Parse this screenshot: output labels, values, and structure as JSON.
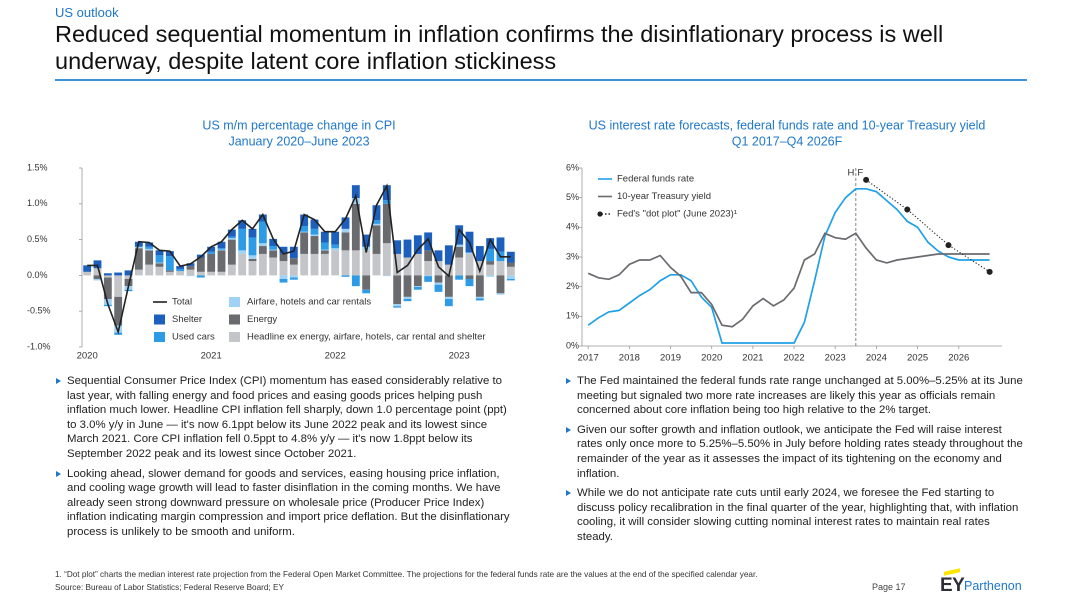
{
  "header": {
    "section": "US outlook",
    "title": "Reduced sequential momentum in inflation confirms the disinflationary process is well underway, despite latent core inflation stickiness"
  },
  "chart_data": [
    {
      "type": "bar",
      "stacked": true,
      "title": "US m/m percentage change in CPI",
      "subtitle": "January 2020–June 2023",
      "categories": [
        "2020",
        null,
        null,
        null,
        null,
        null,
        null,
        null,
        null,
        null,
        null,
        null,
        "2021",
        null,
        null,
        null,
        null,
        null,
        null,
        null,
        null,
        null,
        null,
        null,
        "2022",
        null,
        null,
        null,
        null,
        null,
        null,
        null,
        null,
        null,
        null,
        null,
        "2023",
        null,
        null,
        null,
        null,
        null
      ],
      "ylim": [
        -1.0,
        1.5
      ],
      "yticks": [
        {
          "value": 1.5,
          "label": "1.5%"
        },
        {
          "value": 1.0,
          "label": "1.0%"
        },
        {
          "value": 0.5,
          "label": "0.5%"
        },
        {
          "value": 0.0,
          "label": "0.0%"
        },
        {
          "value": -0.5,
          "label": "-0.5%"
        },
        {
          "value": -1.0,
          "label": "-1.0%"
        }
      ],
      "grid": false,
      "legend": "lower-center",
      "series": [
        {
          "name": "Total",
          "type": "line",
          "color": "#222222",
          "values": [
            0.14,
            0.14,
            -0.4,
            -0.79,
            -0.15,
            0.47,
            0.46,
            0.35,
            0.34,
            0.13,
            0.16,
            0.26,
            0.4,
            0.47,
            0.64,
            0.77,
            0.65,
            0.85,
            0.51,
            0.3,
            0.34,
            0.85,
            0.78,
            0.61,
            0.61,
            0.79,
            1.11,
            0.32,
            0.98,
            1.25,
            0.04,
            0.14,
            0.36,
            0.51,
            0.12,
            -0.01,
            0.64,
            0.46,
            0.06,
            0.5,
            0.26,
            0.26
          ]
        },
        {
          "name": "Shelter",
          "color": "#1c5fbd",
          "values": [
            0.09,
            0.11,
            0.03,
            0.04,
            0.07,
            0.07,
            0.06,
            0.07,
            0.07,
            0.04,
            0.04,
            0.04,
            0.07,
            0.09,
            0.1,
            0.12,
            0.12,
            0.1,
            0.1,
            0.1,
            0.16,
            0.16,
            0.13,
            0.15,
            0.18,
            0.16,
            0.18,
            0.17,
            0.21,
            0.21,
            0.19,
            0.25,
            0.26,
            0.25,
            0.15,
            0.27,
            0.27,
            0.29,
            0.21,
            0.15,
            0.2,
            0.15
          ]
        },
        {
          "name": "Used cars",
          "color": "#2e9be6",
          "values": [
            0.0,
            0.0,
            -0.02,
            -0.03,
            -0.02,
            0.0,
            0.03,
            0.1,
            0.2,
            0.03,
            0.0,
            -0.03,
            0.03,
            0.02,
            0.02,
            0.3,
            0.25,
            0.3,
            0.05,
            -0.05,
            -0.03,
            0.08,
            0.08,
            0.1,
            0.05,
            -0.02,
            -0.15,
            -0.05,
            0.05,
            0.05,
            -0.02,
            -0.03,
            -0.04,
            -0.08,
            -0.1,
            -0.1,
            -0.06,
            -0.1,
            -0.03,
            0.17,
            0.13,
            -0.02
          ]
        },
        {
          "name": "Airfare, hotels and car rentals",
          "color": "#9fd2f5",
          "values": [
            0.0,
            -0.02,
            -0.08,
            -0.1,
            -0.05,
            0.02,
            0.02,
            0.01,
            0.0,
            0.0,
            -0.01,
            0.0,
            0.0,
            0.01,
            0.02,
            0.05,
            0.05,
            0.04,
            0.01,
            -0.05,
            -0.03,
            0.01,
            0.02,
            0.01,
            0.03,
            0.05,
            0.08,
            0.05,
            0.02,
            -0.01,
            -0.03,
            -0.03,
            -0.01,
            -0.01,
            -0.03,
            -0.03,
            0.03,
            0.02,
            -0.02,
            -0.02,
            -0.02,
            -0.05
          ]
        },
        {
          "name": "Energy",
          "color": "#6a6b6f",
          "values": [
            0.0,
            -0.05,
            -0.3,
            -0.4,
            -0.1,
            0.3,
            0.2,
            0.05,
            0.02,
            0.0,
            0.05,
            0.2,
            0.25,
            0.3,
            0.35,
            0.0,
            0.03,
            0.11,
            0.1,
            0.1,
            0.09,
            0.3,
            0.25,
            0.05,
            0.0,
            0.25,
            0.65,
            -0.2,
            0.4,
            0.55,
            -0.4,
            -0.3,
            -0.15,
            0.15,
            -0.1,
            -0.3,
            0.15,
            -0.05,
            -0.3,
            0.05,
            -0.25,
            0.06
          ]
        },
        {
          "name": "Headline ex energy, airfare, hotels, car rental and shelter",
          "color": "#c4c5c8",
          "values": [
            0.05,
            0.1,
            -0.03,
            -0.3,
            -0.05,
            0.08,
            0.15,
            0.12,
            0.05,
            0.06,
            0.08,
            0.05,
            0.05,
            0.05,
            0.15,
            0.3,
            0.2,
            0.3,
            0.25,
            0.2,
            0.15,
            0.3,
            0.3,
            0.3,
            0.35,
            0.35,
            0.35,
            0.35,
            0.3,
            0.45,
            0.3,
            0.25,
            0.3,
            0.2,
            0.2,
            0.15,
            0.25,
            0.3,
            0.2,
            0.15,
            0.2,
            0.12
          ]
        }
      ]
    },
    {
      "type": "line",
      "title": "US interest rate forecasts, federal funds rate and 10-year Treasury yield",
      "subtitle": "Q1 2017–Q4 2026F",
      "x": [
        2017,
        2017.25,
        2017.5,
        2017.75,
        2018,
        2018.25,
        2018.5,
        2018.75,
        2019,
        2019.25,
        2019.5,
        2019.75,
        2020,
        2020.25,
        2020.5,
        2020.75,
        2021,
        2021.25,
        2021.5,
        2021.75,
        2022,
        2022.25,
        2022.5,
        2022.75,
        2023,
        2023.25,
        2023.5,
        2023.75,
        2024,
        2024.25,
        2024.5,
        2024.75,
        2025,
        2025.25,
        2025.5,
        2025.75,
        2026,
        2026.25,
        2026.5,
        2026.75
      ],
      "xlim": [
        2016.85,
        2027.05
      ],
      "xticks": [
        2017,
        2018,
        2019,
        2020,
        2021,
        2022,
        2023,
        2024,
        2025,
        2026
      ],
      "ylim": [
        0,
        6
      ],
      "yticks": [
        {
          "value": 0,
          "label": "0%"
        },
        {
          "value": 1,
          "label": "1%"
        },
        {
          "value": 2,
          "label": "2%"
        },
        {
          "value": 3,
          "label": "3%"
        },
        {
          "value": 4,
          "label": "4%"
        },
        {
          "value": 5,
          "label": "5%"
        },
        {
          "value": 6,
          "label": "6%"
        }
      ],
      "grid": false,
      "legend": "upper-left",
      "annotations": {
        "divider_x": 2023.5,
        "left": "H",
        "right": "F"
      },
      "series": [
        {
          "name": "Federal funds rate",
          "color": "#1fa0e8",
          "values": [
            0.7,
            0.95,
            1.15,
            1.2,
            1.45,
            1.7,
            1.9,
            2.2,
            2.4,
            2.4,
            2.2,
            1.65,
            1.3,
            0.1,
            0.1,
            0.1,
            0.1,
            0.1,
            0.1,
            0.1,
            0.1,
            0.8,
            2.2,
            3.7,
            4.5,
            5.0,
            5.3,
            5.3,
            5.2,
            4.9,
            4.6,
            4.2,
            4.0,
            3.5,
            3.2,
            3.0,
            2.9,
            2.9,
            2.9,
            2.9
          ]
        },
        {
          "name": "10-year Treasury yield",
          "color": "#6a6b6f",
          "values": [
            2.45,
            2.3,
            2.25,
            2.4,
            2.75,
            2.9,
            2.9,
            3.05,
            2.65,
            2.35,
            1.8,
            1.8,
            1.4,
            0.7,
            0.65,
            0.9,
            1.35,
            1.6,
            1.35,
            1.55,
            1.95,
            2.9,
            3.1,
            3.8,
            3.65,
            3.6,
            3.8,
            3.3,
            2.9,
            2.8,
            2.9,
            2.95,
            3.0,
            3.05,
            3.1,
            3.1,
            3.1,
            3.1,
            3.1,
            3.1
          ]
        },
        {
          "name": "Fed's \"dot plot\" (June 2023)¹",
          "color": "#222222",
          "style": "dotted",
          "x": [
            2023.75,
            2024.75,
            2025.75,
            2026.75
          ],
          "values": [
            5.6,
            4.6,
            3.4,
            2.5
          ]
        }
      ]
    }
  ],
  "text": {
    "left_bullets": [
      "Sequential Consumer Price Index (CPI) momentum has eased considerably relative to last year, with falling energy and food prices and easing goods prices helping push inflation much lower. Headline CPI inflation fell sharply, down 1.0 percentage point (ppt) to 3.0% y/y in June — it's now 6.1ppt below its June 2022 peak and its lowest since March 2021. Core CPI inflation fell 0.5ppt to 4.8% y/y — it's now 1.8ppt below its September 2022 peak and its lowest since October 2021.",
      "Looking ahead, slower demand for goods and services, easing housing price inflation, and cooling wage growth will lead to faster disinflation in the coming months. We have already seen strong downward pressure on wholesale price (Producer Price Index) inflation indicating margin compression and import price deflation. But the disinflationary process is unlikely to be smooth and uniform."
    ],
    "right_bullets": [
      "The Fed maintained the federal funds rate range unchanged at 5.00%–5.25% at its June meeting but signaled two more rate increases are likely this year as officials remain concerned about core inflation being too high relative to the 2% target.",
      "Given our softer growth and inflation outlook, we anticipate the Fed will raise interest rates only once more to 5.25%–5.50% in July before holding rates steady throughout the remainder of the year as it assesses the impact of its tightening on the economy and inflation.",
      "While we do not anticipate rate cuts until early 2024, we foresee the Fed starting to discuss policy recalibration in the final quarter of the year, highlighting that, with inflation cooling, it will consider slowing cutting nominal interest rates to maintain real rates steady."
    ]
  },
  "footer": {
    "footnote": "1.  “Dot plot” charts the median interest rate projection from the Federal Open Market Committee. The projections for the federal funds rate are the values at the end of the specified calendar year.",
    "source": "Source: Bureau of Labor Statistics; Federal Reserve Board; EY",
    "page": "Page 17",
    "logo": {
      "brand": "EY",
      "sub": "Parthenon"
    }
  }
}
